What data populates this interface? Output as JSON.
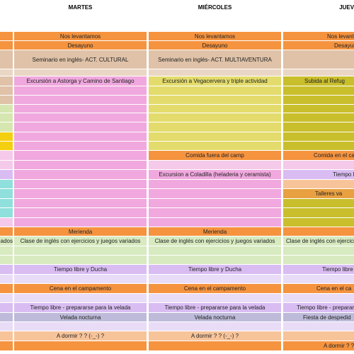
{
  "header": {
    "columns": [
      "MARTES",
      "MIÉRCOLES",
      "JUEVES"
    ]
  },
  "left": [
    "ados"
  ],
  "martes": [
    "Nos levantamos",
    "Desayuno",
    "Seminario en inglés- ACT. CULTURAL",
    "Excursión a Astorga y Camino de Santiago",
    "Merienda",
    "Clase de inglés con ejercicios y juegos variados",
    "Tiempo libre y Ducha",
    "Cena en el campamento",
    "Tiempo libre - prepararse para la velada",
    "Velada nocturna",
    "A dormir ? ? (-_-) ?"
  ],
  "miercoles": [
    "Nos levantamos",
    "Desayuno",
    "Seminario en inglés- ACT. MULTIAVENTURA",
    "Excursión a Vegacervera y triple actividad",
    "Comida fuera del camp",
    "Excursion a Coladilla (heladeria y ceramista)",
    "Merienda",
    "Clase de inglés con ejercicios y juegos variados",
    "Tiempo libre y Ducha",
    "Cena en el campamento",
    "Tiempo libre - prepararse para la velada",
    "Velada nocturna",
    "A dormir ? ? (-_-) ?"
  ],
  "jueves": [
    "Nos levantamos",
    "Desayuno",
    "Subida al Refug",
    "Comida en el ca",
    "Tiempo l",
    "Talleres va",
    "Clase de inglés con ejercicios y juegos variados",
    "Tiempo libre",
    "Cena en el ca",
    "Tiempo libre - prepararse para la velada",
    "Fiesta de despedid",
    "A dormir ? ? (-_-) ?"
  ]
}
